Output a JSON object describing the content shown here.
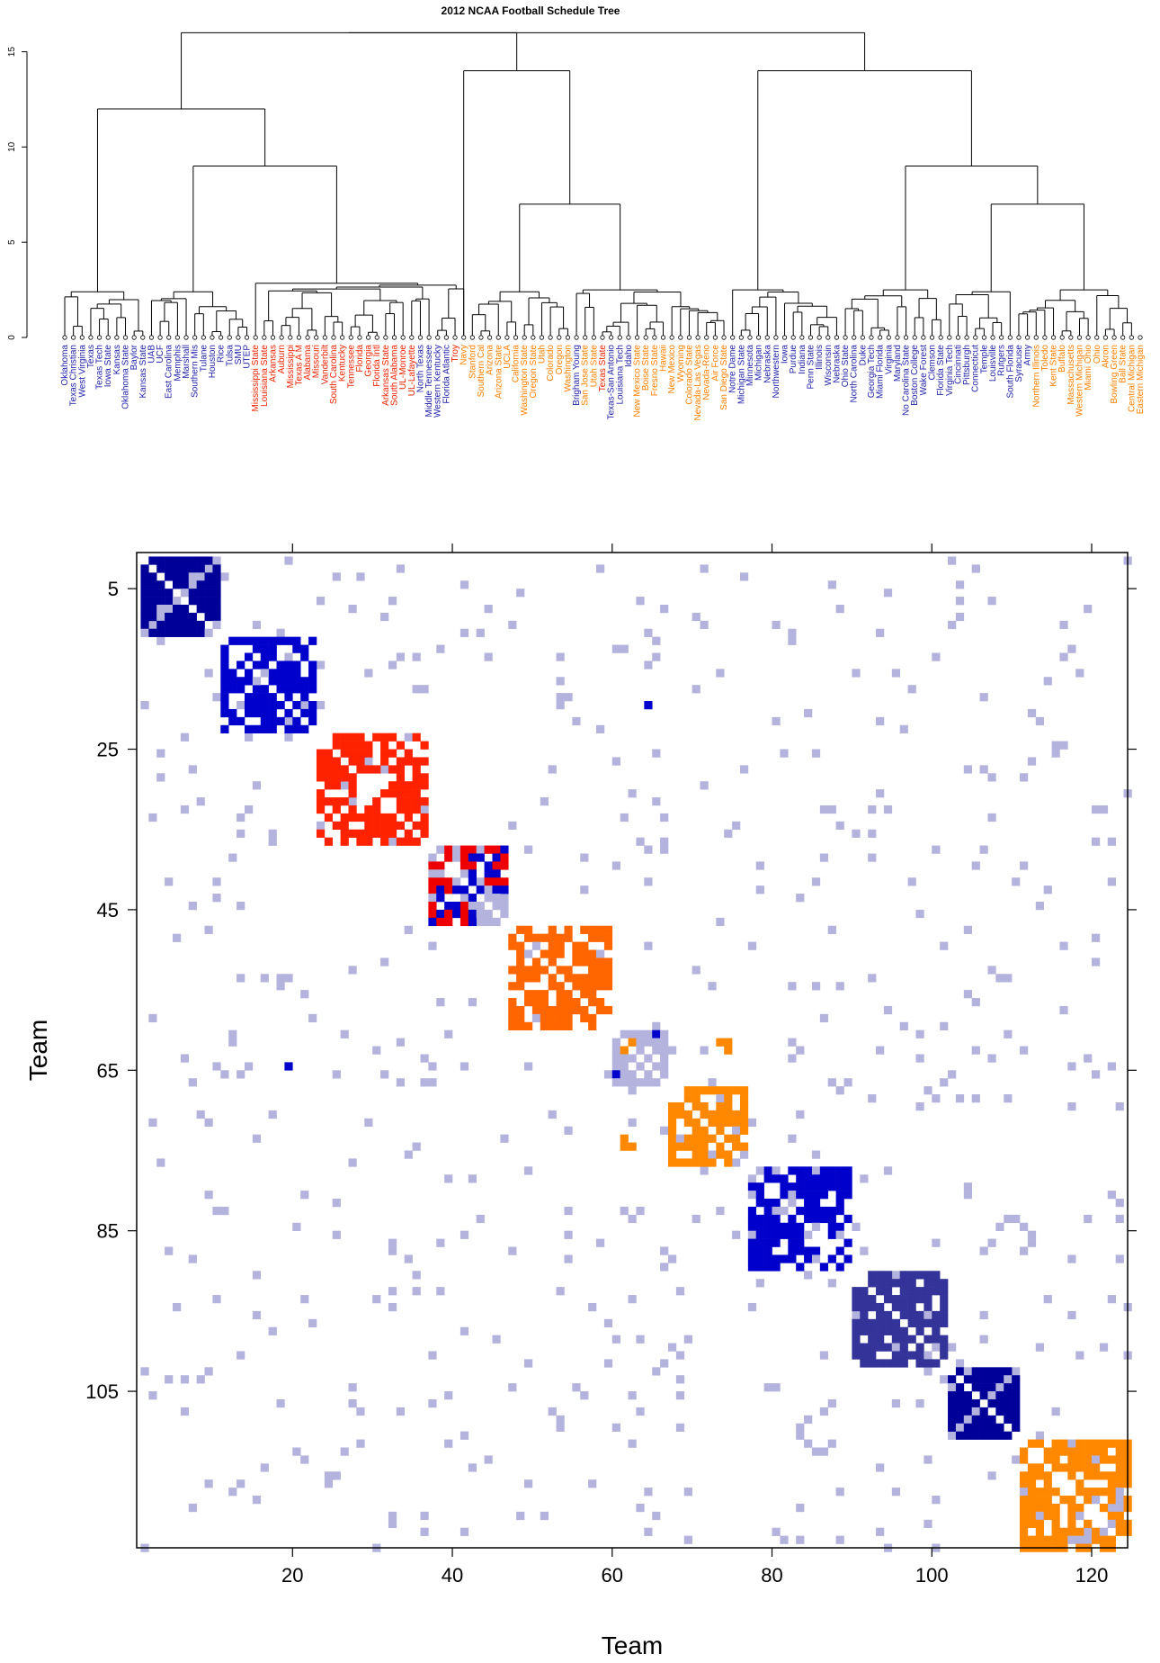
{
  "chart_data": [
    {
      "type": "dendrogram",
      "title": "2012 NCAA Football Schedule Tree",
      "xlabel": "",
      "ylabel": "",
      "ylim": [
        0,
        16
      ],
      "yticks": [
        0,
        5,
        10,
        15
      ],
      "colors": {
        "blue": "#2222aa",
        "red": "#ee2200",
        "orange": "#ff7f00",
        "lineColor": "#000000"
      },
      "leaves": [
        {
          "label": "Oklahoma",
          "color": "blue"
        },
        {
          "label": "Texas Christian",
          "color": "blue"
        },
        {
          "label": "West Virginia",
          "color": "blue"
        },
        {
          "label": "Texas",
          "color": "blue"
        },
        {
          "label": "Texas Tech",
          "color": "blue"
        },
        {
          "label": "Iowa State",
          "color": "blue"
        },
        {
          "label": "Kansas",
          "color": "blue"
        },
        {
          "label": "Oklahoma State",
          "color": "blue"
        },
        {
          "label": "Baylor",
          "color": "blue"
        },
        {
          "label": "Kansas State",
          "color": "blue"
        },
        {
          "label": "UAB",
          "color": "blue"
        },
        {
          "label": "UCF",
          "color": "blue"
        },
        {
          "label": "East Carolina",
          "color": "blue"
        },
        {
          "label": "Memphis",
          "color": "blue"
        },
        {
          "label": "Marshall",
          "color": "blue"
        },
        {
          "label": "Southern Mis",
          "color": "blue"
        },
        {
          "label": "Tulane",
          "color": "blue"
        },
        {
          "label": "Houston",
          "color": "blue"
        },
        {
          "label": "Rice",
          "color": "blue"
        },
        {
          "label": "Tulsa",
          "color": "blue"
        },
        {
          "label": "SMU",
          "color": "blue"
        },
        {
          "label": "UTEP",
          "color": "blue"
        },
        {
          "label": "Mississippi State",
          "color": "red"
        },
        {
          "label": "Louisiana State",
          "color": "red"
        },
        {
          "label": "Arkansas",
          "color": "red"
        },
        {
          "label": "Auburn",
          "color": "red"
        },
        {
          "label": "Mississippi",
          "color": "red"
        },
        {
          "label": "Texas A M",
          "color": "red"
        },
        {
          "label": "Alabama",
          "color": "red"
        },
        {
          "label": "Missouri",
          "color": "red"
        },
        {
          "label": "Vanderbilt",
          "color": "red"
        },
        {
          "label": "South Carolina",
          "color": "red"
        },
        {
          "label": "Kentucky",
          "color": "red"
        },
        {
          "label": "Tennessee",
          "color": "red"
        },
        {
          "label": "Florida",
          "color": "red"
        },
        {
          "label": "Georgia",
          "color": "red"
        },
        {
          "label": "Florida Intl",
          "color": "red"
        },
        {
          "label": "Arkansas State",
          "color": "red"
        },
        {
          "label": "South Alabama",
          "color": "red"
        },
        {
          "label": "UL-Monroe",
          "color": "red"
        },
        {
          "label": "UL-Lafayette",
          "color": "red"
        },
        {
          "label": "North Texas",
          "color": "blue"
        },
        {
          "label": "Middle Tennessee",
          "color": "blue"
        },
        {
          "label": "Western Kentucky",
          "color": "blue"
        },
        {
          "label": "Florida Atlantic",
          "color": "blue"
        },
        {
          "label": "Troy",
          "color": "red"
        },
        {
          "label": "Navy",
          "color": "orange"
        },
        {
          "label": "Stanford",
          "color": "orange"
        },
        {
          "label": "Southern Cal",
          "color": "orange"
        },
        {
          "label": "Arizona",
          "color": "orange"
        },
        {
          "label": "Arizona State",
          "color": "orange"
        },
        {
          "label": "UCLA",
          "color": "orange"
        },
        {
          "label": "California",
          "color": "orange"
        },
        {
          "label": "Washington State",
          "color": "orange"
        },
        {
          "label": "Oregon State",
          "color": "orange"
        },
        {
          "label": "Utah",
          "color": "orange"
        },
        {
          "label": "Colorado",
          "color": "orange"
        },
        {
          "label": "Oregon",
          "color": "orange"
        },
        {
          "label": "Washington",
          "color": "orange"
        },
        {
          "label": "Brigham Young",
          "color": "blue"
        },
        {
          "label": "San Jose State",
          "color": "orange"
        },
        {
          "label": "Utah State",
          "color": "orange"
        },
        {
          "label": "Texas State",
          "color": "red"
        },
        {
          "label": "Texas-San Antonio",
          "color": "blue"
        },
        {
          "label": "Louisiana Tech",
          "color": "blue"
        },
        {
          "label": "Idaho",
          "color": "blue"
        },
        {
          "label": "New Mexico State",
          "color": "orange"
        },
        {
          "label": "Boise State",
          "color": "orange"
        },
        {
          "label": "Fresno State",
          "color": "orange"
        },
        {
          "label": "Hawaii",
          "color": "orange"
        },
        {
          "label": "New Mexico",
          "color": "orange"
        },
        {
          "label": "Wyoming",
          "color": "orange"
        },
        {
          "label": "Colorado State",
          "color": "orange"
        },
        {
          "label": "Nevada-Las Vegas",
          "color": "orange"
        },
        {
          "label": "Nevada-Reno",
          "color": "orange"
        },
        {
          "label": "Air Force",
          "color": "orange"
        },
        {
          "label": "San Diego State",
          "color": "orange"
        },
        {
          "label": "Notre Dame",
          "color": "blue"
        },
        {
          "label": "Michigan State",
          "color": "blue"
        },
        {
          "label": "Minnesota",
          "color": "blue"
        },
        {
          "label": "Michigan",
          "color": "blue"
        },
        {
          "label": "Nebraska",
          "color": "blue"
        },
        {
          "label": "Northwestern",
          "color": "blue"
        },
        {
          "label": "Iowa",
          "color": "blue"
        },
        {
          "label": "Purdue",
          "color": "blue"
        },
        {
          "label": "Indiana",
          "color": "blue"
        },
        {
          "label": "Penn State",
          "color": "blue"
        },
        {
          "label": "Illinois",
          "color": "blue"
        },
        {
          "label": "Wisconsin",
          "color": "blue"
        },
        {
          "label": "Nebraska",
          "color": "blue"
        },
        {
          "label": "Ohio State",
          "color": "blue"
        },
        {
          "label": "North Carolina",
          "color": "blue"
        },
        {
          "label": "Duke",
          "color": "blue"
        },
        {
          "label": "Georgia Tech",
          "color": "blue"
        },
        {
          "label": "Miami Florida",
          "color": "blue"
        },
        {
          "label": "Virginia",
          "color": "blue"
        },
        {
          "label": "Maryland",
          "color": "blue"
        },
        {
          "label": "No Carolina State",
          "color": "blue"
        },
        {
          "label": "Boston College",
          "color": "blue"
        },
        {
          "label": "Wake Forest",
          "color": "blue"
        },
        {
          "label": "Clemson",
          "color": "blue"
        },
        {
          "label": "Florida State",
          "color": "blue"
        },
        {
          "label": "Virginia Tech",
          "color": "blue"
        },
        {
          "label": "Cincinnati",
          "color": "blue"
        },
        {
          "label": "Pittsburgh",
          "color": "blue"
        },
        {
          "label": "Connecticut",
          "color": "blue"
        },
        {
          "label": "Temple",
          "color": "blue"
        },
        {
          "label": "Louisville",
          "color": "blue"
        },
        {
          "label": "Rutgers",
          "color": "blue"
        },
        {
          "label": "South Florida",
          "color": "blue"
        },
        {
          "label": "Syracuse",
          "color": "blue"
        },
        {
          "label": "Army",
          "color": "blue"
        },
        {
          "label": "Northern Illinois",
          "color": "orange"
        },
        {
          "label": "Toledo",
          "color": "orange"
        },
        {
          "label": "Kent State",
          "color": "orange"
        },
        {
          "label": "Buffalo",
          "color": "orange"
        },
        {
          "label": "Massachusetts",
          "color": "orange"
        },
        {
          "label": "Western Michigan",
          "color": "orange"
        },
        {
          "label": "Miami Ohio",
          "color": "orange"
        },
        {
          "label": "Ohio",
          "color": "orange"
        },
        {
          "label": "Akron",
          "color": "orange"
        },
        {
          "label": "Bowling Green",
          "color": "orange"
        },
        {
          "label": "Ball State",
          "color": "orange"
        },
        {
          "label": "Central Michigan",
          "color": "orange"
        },
        {
          "label": "Eastern Michigan",
          "color": "orange"
        }
      ],
      "clusters": [
        {
          "range": [
            0,
            9
          ],
          "height": 2.4
        },
        {
          "range": [
            10,
            21
          ],
          "height": 2.4
        },
        {
          "range": [
            22,
            46
          ],
          "height": 2.6
        },
        {
          "range": [
            47,
            58
          ],
          "height": 2.4
        },
        {
          "range": [
            59,
            76
          ],
          "height": 2.5
        },
        {
          "range": [
            77,
            89
          ],
          "height": 2.5
        },
        {
          "range": [
            90,
            101
          ],
          "height": 2.5
        },
        {
          "range": [
            102,
            109
          ],
          "height": 2.4
        },
        {
          "range": [
            110,
            123
          ],
          "height": 2.5
        }
      ],
      "merges": [
        {
          "children": [
            "c1",
            "c2"
          ],
          "height": 9.0
        },
        {
          "children": [
            "c0",
            "m0"
          ],
          "height": 12.0
        },
        {
          "children": [
            "c3",
            "c4"
          ],
          "height": 7.0
        },
        {
          "children": [
            "c2x",
            "m2"
          ],
          "height": 14.0
        },
        {
          "children": [
            "c7",
            "c8"
          ],
          "height": 7.0
        },
        {
          "children": [
            "c6",
            "m4"
          ],
          "height": 9.0
        },
        {
          "children": [
            "c5",
            "m5"
          ],
          "height": 14.0
        },
        {
          "children": [
            "m1",
            "m3"
          ],
          "height": 16.0
        },
        {
          "children": [
            "m7",
            "m6"
          ],
          "height": 16.0
        }
      ]
    },
    {
      "type": "heatmap",
      "title": "",
      "xlabel": "Team",
      "ylabel": "Team",
      "xlim": [
        1,
        124
      ],
      "ylim": [
        1,
        124
      ],
      "xticks": [
        20,
        40,
        60,
        80,
        100,
        120
      ],
      "yticks": [
        5,
        25,
        45,
        65,
        85,
        105
      ],
      "colors": {
        "light": "#b3b3dd",
        "blue": "#0000cc",
        "navy": "#000099",
        "indigo": "#333399",
        "red": "#ff2200",
        "darkred": "#ee0000",
        "orange": "#ff6600",
        "amber": "#ff8800"
      },
      "blocks": [
        {
          "range": [
            1,
            10
          ],
          "color": "navy",
          "pattern": "diagonal"
        },
        {
          "range": [
            11,
            22
          ],
          "color": "blue",
          "pattern": "dense"
        },
        {
          "range": [
            23,
            36
          ],
          "color": "red",
          "pattern": "petal"
        },
        {
          "range": [
            37,
            46
          ],
          "color": "blue",
          "alt": "darkred",
          "pattern": "mixed"
        },
        {
          "range": [
            47,
            59
          ],
          "color": "orange",
          "pattern": "dense"
        },
        {
          "range": [
            60,
            66
          ],
          "color": "light",
          "pattern": "sparse"
        },
        {
          "range": [
            67,
            76
          ],
          "color": "amber",
          "pattern": "dense"
        },
        {
          "range": [
            77,
            89
          ],
          "color": "blue",
          "pattern": "dense"
        },
        {
          "range": [
            90,
            101
          ],
          "color": "indigo",
          "pattern": "dense"
        },
        {
          "range": [
            102,
            110
          ],
          "color": "navy",
          "pattern": "diagonal"
        },
        {
          "range": [
            111,
            124
          ],
          "color": "amber",
          "pattern": "dense"
        }
      ],
      "offblock_density": 0.035
    }
  ]
}
